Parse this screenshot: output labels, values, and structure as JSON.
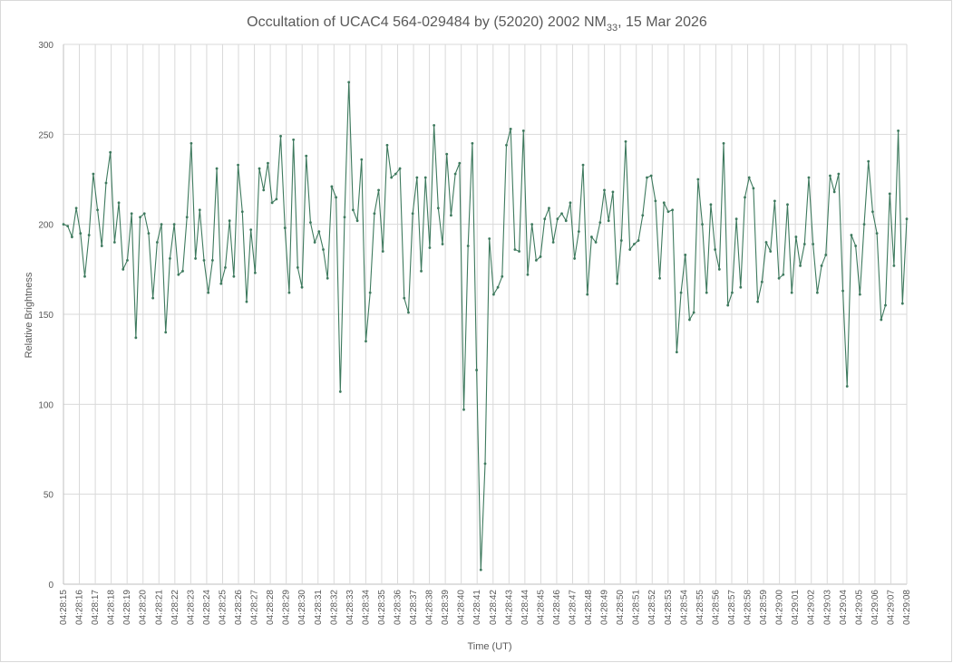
{
  "chart_data": {
    "type": "line",
    "title": {
      "main": "Occultation of UCAC4 564-029484 by (52020) 2002 NM",
      "subscript": "33",
      "suffix": ", 15 Mar 2026"
    },
    "xlabel": "Time (UT)",
    "ylabel": "Relative Brightness",
    "ylim": [
      0,
      300
    ],
    "y_ticks": [
      0,
      50,
      100,
      150,
      200,
      250,
      300
    ],
    "x_tick_labels": [
      "04:28:15",
      "04:28:16",
      "04:28:17",
      "04:28:18",
      "04:28:19",
      "04:28:20",
      "04:28:21",
      "04:28:22",
      "04:28:23",
      "04:28:24",
      "04:28:25",
      "04:28:26",
      "04:28:27",
      "04:28:28",
      "04:28:29",
      "04:28:30",
      "04:28:31",
      "04:28:32",
      "04:28:33",
      "04:28:34",
      "04:28:35",
      "04:28:36",
      "04:28:37",
      "04:28:38",
      "04:28:39",
      "04:28:40",
      "04:28:41",
      "04:28:42",
      "04:28:43",
      "04:28:44",
      "04:28:45",
      "04:28:46",
      "04:28:47",
      "04:28:48",
      "04:28:49",
      "04:28:50",
      "04:28:51",
      "04:28:52",
      "04:28:53",
      "04:28:54",
      "04:28:55",
      "04:28:56",
      "04:28:57",
      "04:28:58",
      "04:28:59",
      "04:29:00",
      "04:29:01",
      "04:29:02",
      "04:29:03",
      "04:29:04",
      "04:29:05",
      "04:29:06",
      "04:29:07",
      "04:29:08"
    ],
    "x_start": "04:28:15",
    "x_end": "04:29:08",
    "vertical_grid": true,
    "horizontal_grid": true,
    "legend": "none",
    "series_color": "#3e7a5e",
    "values": [
      200,
      199,
      193,
      209,
      195,
      171,
      194,
      228,
      208,
      188,
      223,
      240,
      190,
      212,
      175,
      180,
      206,
      137,
      204,
      206,
      195,
      159,
      190,
      200,
      140,
      181,
      200,
      172,
      174,
      204,
      245,
      181,
      208,
      180,
      162,
      180,
      231,
      167,
      176,
      202,
      171,
      233,
      207,
      157,
      197,
      173,
      231,
      219,
      234,
      212,
      214,
      249,
      198,
      162,
      247,
      176,
      165,
      238,
      201,
      190,
      196,
      186,
      170,
      221,
      215,
      107,
      204,
      279,
      208,
      202,
      236,
      135,
      162,
      206,
      219,
      185,
      244,
      226,
      228,
      231,
      159,
      151,
      206,
      226,
      174,
      226,
      187,
      255,
      209,
      189,
      239,
      205,
      228,
      234,
      97,
      188,
      245,
      119,
      8,
      67,
      192,
      161,
      165,
      171,
      244,
      253,
      186,
      185,
      252,
      172,
      200,
      180,
      182,
      203,
      209,
      190,
      203,
      206,
      202,
      212,
      181,
      196,
      233,
      161,
      193,
      190,
      201,
      219,
      202,
      218,
      167,
      191,
      246,
      186,
      189,
      191,
      205,
      226,
      227,
      213,
      170,
      212,
      207,
      208,
      129,
      162,
      183,
      147,
      151,
      225,
      200,
      162,
      211,
      186,
      175,
      245,
      155,
      162,
      203,
      165,
      215,
      226,
      220,
      157,
      168,
      190,
      185,
      213,
      170,
      172,
      211,
      162,
      193,
      177,
      189,
      226,
      189,
      162,
      177,
      183,
      227,
      218,
      228,
      163,
      110,
      194,
      188,
      161,
      200,
      235,
      207,
      195,
      147,
      155,
      217,
      177,
      252,
      156,
      203
    ]
  }
}
